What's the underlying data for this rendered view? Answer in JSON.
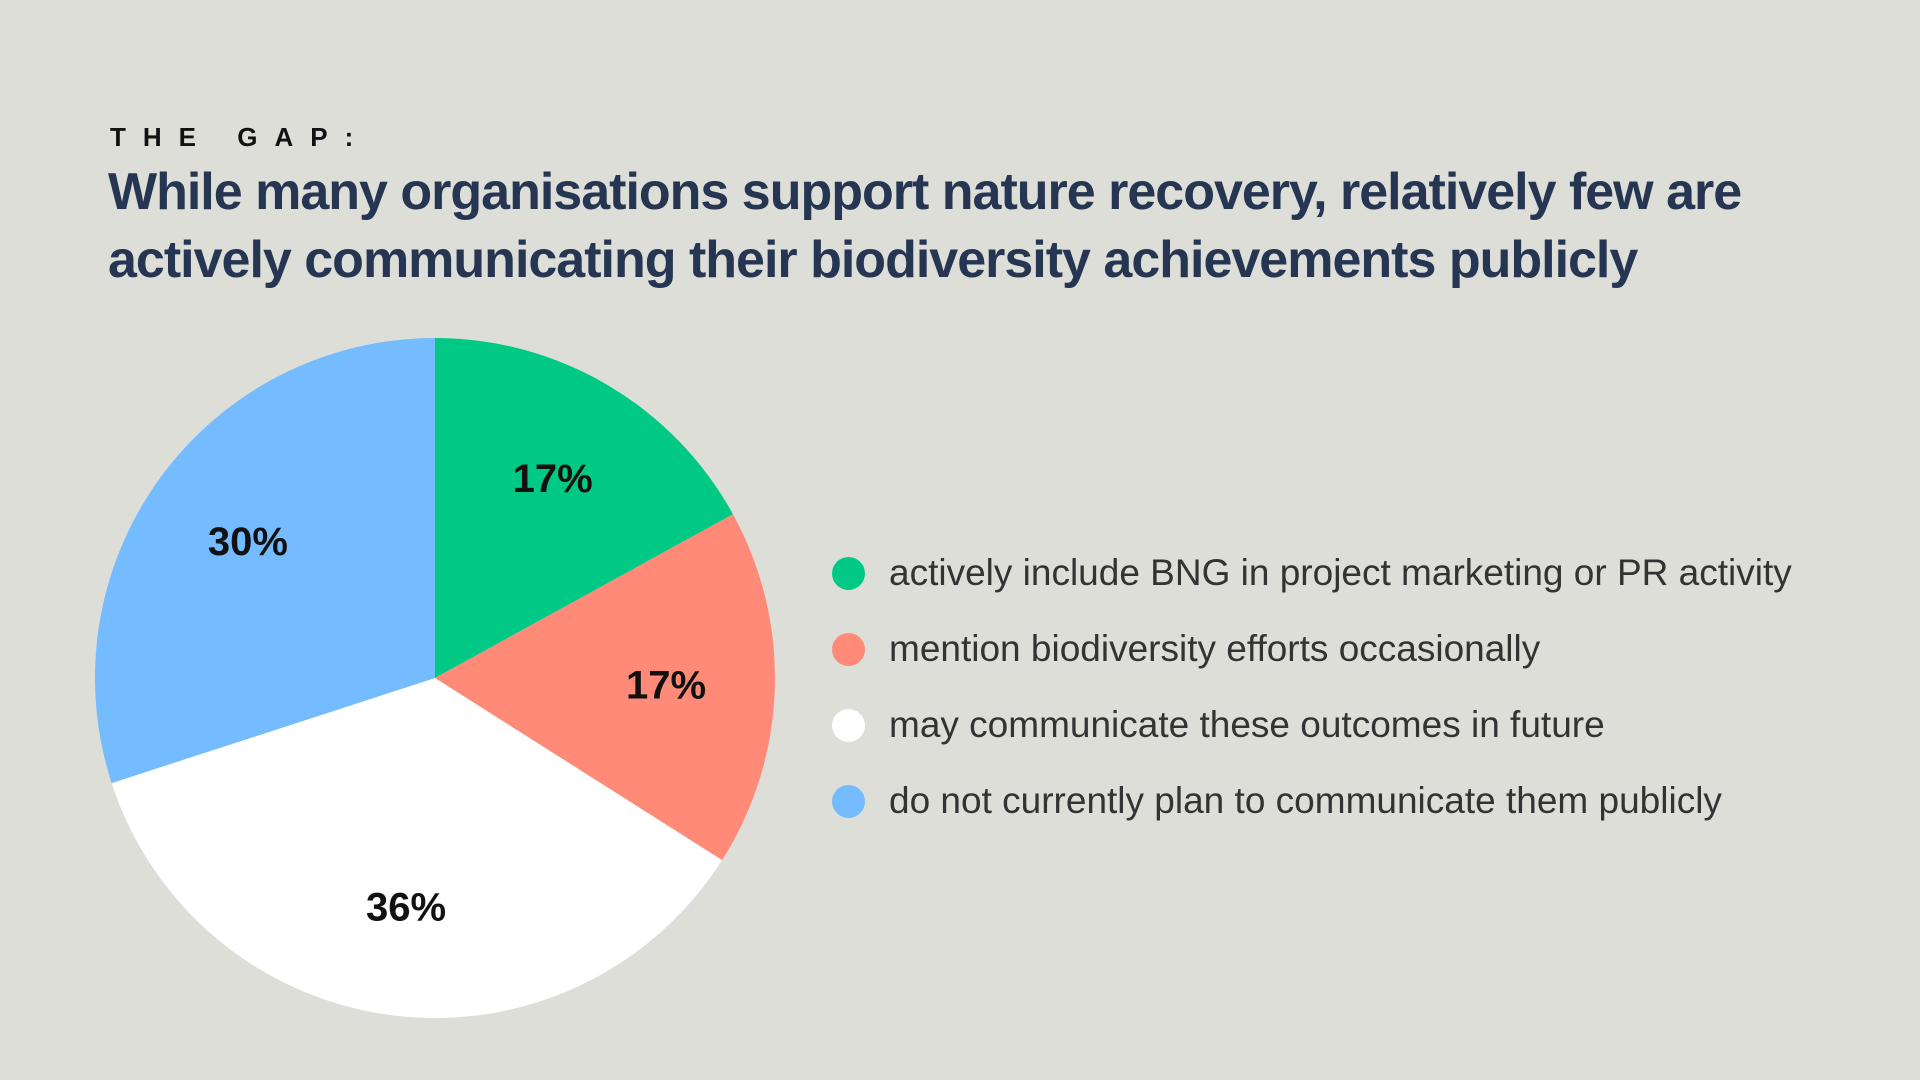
{
  "header": {
    "eyebrow": "THE GAP:",
    "title": "While many organisations support nature recovery, relatively few are actively communicating their biodiversity achievements publicly"
  },
  "chart_data": {
    "type": "pie",
    "title": "",
    "slices": [
      {
        "label": "actively include BNG in project marketing or PR activity",
        "value": 17,
        "value_label": "17%",
        "color": "#00C986"
      },
      {
        "label": "mention biodiversity efforts occasionally",
        "value": 17,
        "value_label": "17%",
        "color": "#FF8A77"
      },
      {
        "label": "may communicate these outcomes in future",
        "value": 36,
        "value_label": "36%",
        "color": "#FFFFFF"
      },
      {
        "label": "do not currently plan to communicate them publicly",
        "value": 30,
        "value_label": "30%",
        "color": "#75BBFF"
      }
    ],
    "legend_position": "right"
  }
}
